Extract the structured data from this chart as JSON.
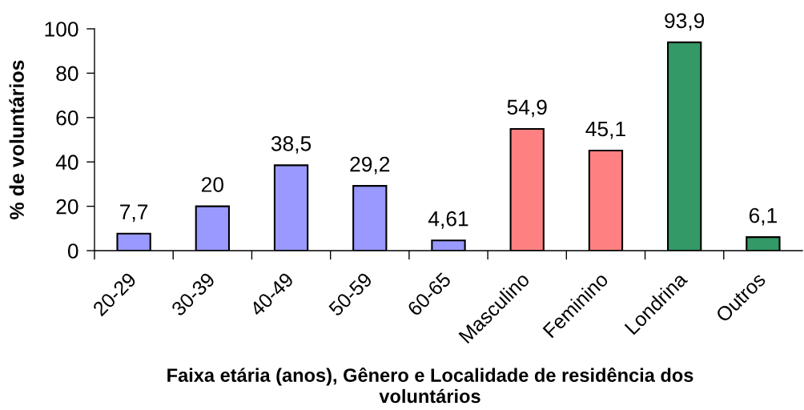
{
  "chart_data": {
    "type": "bar",
    "xlabel": "Faixa etária (anos), Gênero e Localidade de residência dos\nvoluntários",
    "ylabel": "% de voluntários",
    "categories": [
      "20-29",
      "30-39",
      "40-49",
      "50-59",
      "60-65",
      "Masculino",
      "Feminino",
      "Londrina",
      "Outros"
    ],
    "values": [
      7.7,
      20,
      38.5,
      29.2,
      4.61,
      54.9,
      45.1,
      93.9,
      6.1
    ],
    "colors": [
      "#9999ff",
      "#9999ff",
      "#9999ff",
      "#9999ff",
      "#9999ff",
      "#ff8080",
      "#ff8080",
      "#339966",
      "#339966"
    ],
    "value_labels": [
      "7,7",
      "20",
      "38,5",
      "29,2",
      "4,61",
      "54,9",
      "45,1",
      "93,9",
      "6,1"
    ],
    "ylim": [
      0,
      100
    ],
    "yticks": [
      0,
      20,
      40,
      60,
      80,
      100
    ],
    "grid": false,
    "legend": false
  }
}
